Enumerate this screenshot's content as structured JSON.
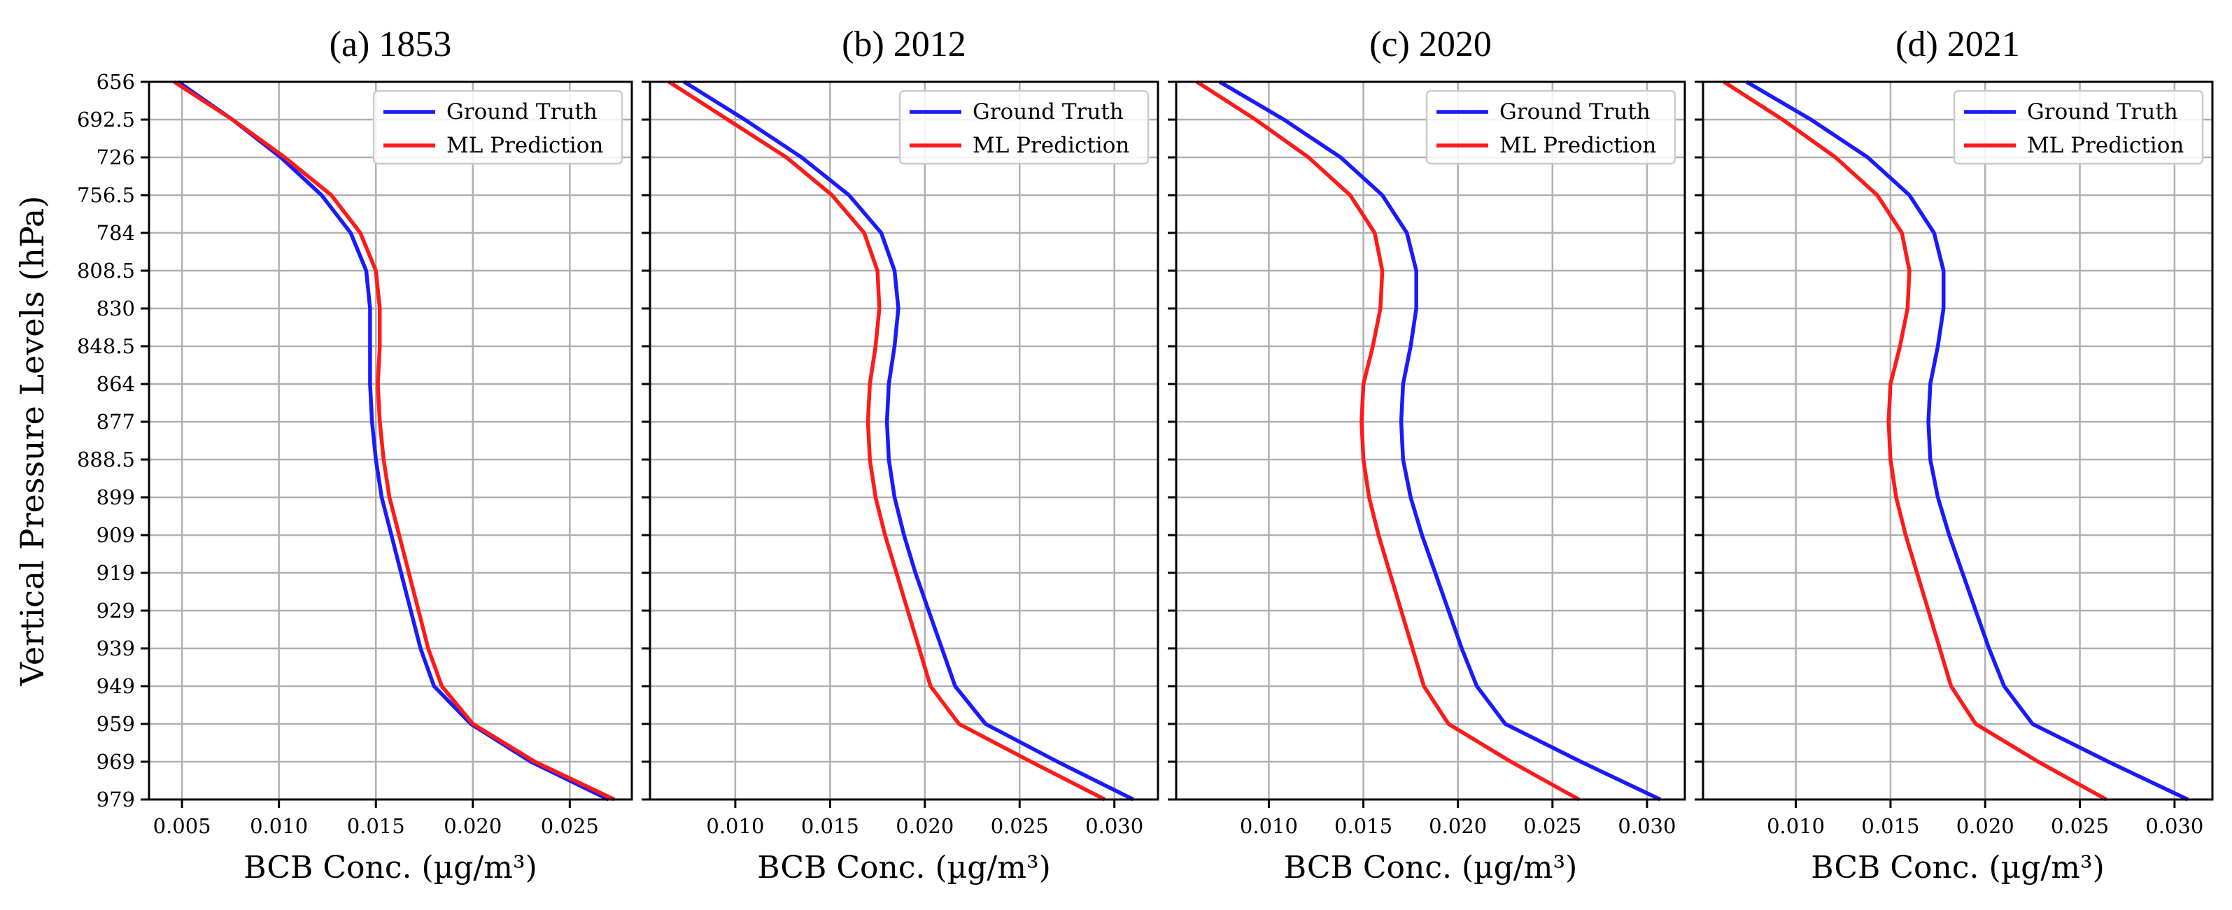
{
  "chart_data": [
    {
      "type": "line",
      "title": "(a) 1853",
      "xlabel": "BCB Conc. (µg/m³)",
      "ylabel": "Vertical Pressure Levels (hPa)",
      "xlim": [
        0.0033,
        0.0282
      ],
      "xticks": [
        "0.005",
        "0.010",
        "0.015",
        "0.020",
        "0.025"
      ],
      "y": [
        "656",
        "692.5",
        "726",
        "756.5",
        "784",
        "808.5",
        "830",
        "848.5",
        "864",
        "877",
        "888.5",
        "899",
        "909",
        "919",
        "929",
        "939",
        "949",
        "959",
        "969",
        "979"
      ],
      "ylim": [
        979,
        656
      ],
      "grid": true,
      "legend_position": "top-right",
      "series": [
        {
          "name": "Ground Truth",
          "color": "#1a1aff",
          "values": [
            0.0048,
            0.0076,
            0.0101,
            0.0122,
            0.0137,
            0.0145,
            0.0147,
            0.0147,
            0.0147,
            0.0148,
            0.015,
            0.0153,
            0.0158,
            0.0163,
            0.0168,
            0.0173,
            0.018,
            0.0199,
            0.023,
            0.027
          ]
        },
        {
          "name": "ML Prediction",
          "color": "#ff1a1a",
          "values": [
            0.0046,
            0.0076,
            0.0103,
            0.0127,
            0.0142,
            0.015,
            0.0152,
            0.0152,
            0.0151,
            0.0152,
            0.0154,
            0.0157,
            0.0162,
            0.0167,
            0.0172,
            0.0177,
            0.0184,
            0.02,
            0.0232,
            0.0273
          ]
        }
      ]
    },
    {
      "type": "line",
      "title": "(b) 2012",
      "xlabel": "BCB Conc. (µg/m³)",
      "ylabel": "",
      "xlim": [
        0.0055,
        0.0323
      ],
      "xticks": [
        "0.010",
        "0.015",
        "0.020",
        "0.025",
        "0.030"
      ],
      "y": [
        "656",
        "692.5",
        "726",
        "756.5",
        "784",
        "808.5",
        "830",
        "848.5",
        "864",
        "877",
        "888.5",
        "899",
        "909",
        "919",
        "929",
        "939",
        "949",
        "959",
        "969",
        "979"
      ],
      "ylim": [
        979,
        656
      ],
      "grid": true,
      "legend_position": "top-right",
      "series": [
        {
          "name": "Ground Truth",
          "color": "#1a1aff",
          "values": [
            0.0073,
            0.0105,
            0.0135,
            0.016,
            0.0177,
            0.0184,
            0.0186,
            0.0184,
            0.0181,
            0.018,
            0.0181,
            0.0184,
            0.0189,
            0.0195,
            0.0202,
            0.0209,
            0.0216,
            0.0232,
            0.027,
            0.031
          ]
        },
        {
          "name": "ML Prediction",
          "color": "#ff1a1a",
          "values": [
            0.0065,
            0.0096,
            0.0127,
            0.0151,
            0.0168,
            0.0175,
            0.0176,
            0.0174,
            0.0171,
            0.017,
            0.0171,
            0.0174,
            0.0179,
            0.0185,
            0.0191,
            0.0197,
            0.0203,
            0.0218,
            0.0256,
            0.0295
          ]
        }
      ]
    },
    {
      "type": "line",
      "title": "(c) 2020",
      "xlabel": "BCB Conc. (µg/m³)",
      "ylabel": "",
      "xlim": [
        0.0051,
        0.032
      ],
      "xticks": [
        "0.010",
        "0.015",
        "0.020",
        "0.025",
        "0.030"
      ],
      "y": [
        "656",
        "692.5",
        "726",
        "756.5",
        "784",
        "808.5",
        "830",
        "848.5",
        "864",
        "877",
        "888.5",
        "899",
        "909",
        "919",
        "929",
        "939",
        "949",
        "959",
        "969",
        "979"
      ],
      "ylim": [
        979,
        656
      ],
      "grid": true,
      "legend_position": "top-right",
      "series": [
        {
          "name": "Ground Truth",
          "color": "#1a1aff",
          "values": [
            0.0074,
            0.0108,
            0.0138,
            0.016,
            0.0173,
            0.0178,
            0.0178,
            0.0175,
            0.0171,
            0.017,
            0.0171,
            0.0175,
            0.0181,
            0.0188,
            0.0195,
            0.0202,
            0.021,
            0.0225,
            0.0265,
            0.0307
          ]
        },
        {
          "name": "ML Prediction",
          "color": "#ff1a1a",
          "values": [
            0.0062,
            0.0093,
            0.0121,
            0.0143,
            0.0156,
            0.016,
            0.0159,
            0.0155,
            0.015,
            0.0149,
            0.015,
            0.0153,
            0.0158,
            0.0164,
            0.017,
            0.0176,
            0.0182,
            0.0195,
            0.0228,
            0.0264
          ]
        }
      ]
    },
    {
      "type": "line",
      "title": "(d) 2021",
      "xlabel": "BCB Conc. (µg/m³)",
      "ylabel": "",
      "xlim": [
        0.0051,
        0.032
      ],
      "xticks": [
        "0.010",
        "0.015",
        "0.020",
        "0.025",
        "0.030"
      ],
      "y": [
        "656",
        "692.5",
        "726",
        "756.5",
        "784",
        "808.5",
        "830",
        "848.5",
        "864",
        "877",
        "888.5",
        "899",
        "909",
        "919",
        "929",
        "939",
        "949",
        "959",
        "969",
        "979"
      ],
      "ylim": [
        979,
        656
      ],
      "grid": true,
      "legend_position": "top-right",
      "series": [
        {
          "name": "Ground Truth",
          "color": "#1a1aff",
          "values": [
            0.0074,
            0.0108,
            0.0138,
            0.016,
            0.0173,
            0.0178,
            0.0178,
            0.0175,
            0.0171,
            0.017,
            0.0171,
            0.0175,
            0.0181,
            0.0188,
            0.0195,
            0.0202,
            0.021,
            0.0225,
            0.0265,
            0.0307
          ]
        },
        {
          "name": "ML Prediction",
          "color": "#ff1a1a",
          "values": [
            0.0062,
            0.0093,
            0.0121,
            0.0143,
            0.0156,
            0.016,
            0.0159,
            0.0155,
            0.015,
            0.0149,
            0.015,
            0.0153,
            0.0158,
            0.0164,
            0.017,
            0.0176,
            0.0182,
            0.0195,
            0.0228,
            0.0264
          ]
        }
      ]
    }
  ]
}
